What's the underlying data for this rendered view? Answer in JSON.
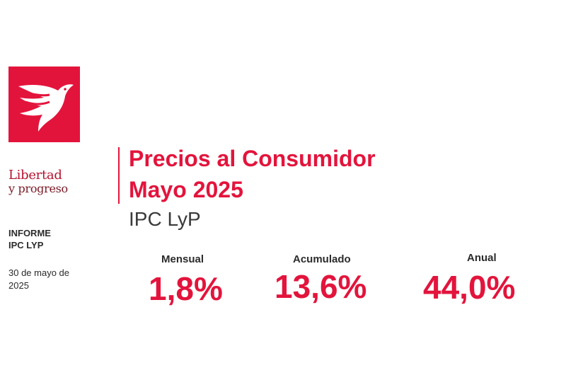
{
  "brand": {
    "line1": "Libertad",
    "line2": "y progreso",
    "logo_icon": "dove-icon",
    "logo_color": "#e3143c"
  },
  "report": {
    "label_line1": "INFORME",
    "label_line2": "IPC LYP",
    "date": "30 de mayo de 2025"
  },
  "header": {
    "title_line1": "Precios al Consumidor",
    "title_line2": "Mayo 2025",
    "subtitle": "IPC LyP"
  },
  "stats": [
    {
      "label": "Mensual",
      "value": "1,8%"
    },
    {
      "label": "Acumulado",
      "value": "13,6%"
    },
    {
      "label": "Anual",
      "value": "44,0%"
    }
  ],
  "colors": {
    "accent": "#e3143c",
    "text": "#2b2b2b"
  }
}
